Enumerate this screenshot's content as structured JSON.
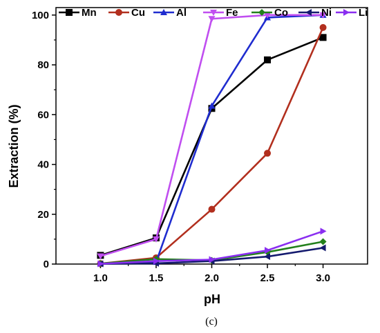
{
  "chart_data": {
    "type": "line",
    "xlabel": "pH",
    "ylabel": "Extraction (%)",
    "caption": "(c)",
    "x": [
      1.0,
      1.5,
      2.0,
      2.5,
      3.0
    ],
    "x_tick_labels": [
      "1.0",
      "1.5",
      "2.0",
      "2.5",
      "3.0"
    ],
    "xlim": [
      0.6,
      3.4
    ],
    "ylim": [
      0,
      103
    ],
    "y_ticks": [
      0,
      20,
      40,
      60,
      80,
      100
    ],
    "legend_position": "top",
    "grid": false,
    "series": [
      {
        "name": "Mn",
        "marker": "square",
        "color": "#000000",
        "values": [
          3.5,
          10.5,
          62.5,
          82,
          91
        ]
      },
      {
        "name": "Cu",
        "marker": "circle",
        "color": "#b22f1e",
        "values": [
          0.2,
          2.5,
          22,
          44.5,
          95
        ]
      },
      {
        "name": "Al",
        "marker": "triangle-up",
        "color": "#1f2ccf",
        "values": [
          0.2,
          0.8,
          63.5,
          99,
          100
        ]
      },
      {
        "name": "Fe",
        "marker": "triangle-down",
        "color": "#c04ef0",
        "values": [
          3.2,
          10,
          98.5,
          100,
          100
        ]
      },
      {
        "name": "Co",
        "marker": "diamond",
        "color": "#23801c",
        "values": [
          0.2,
          2,
          1.5,
          4.8,
          9
        ]
      },
      {
        "name": "Ni",
        "marker": "triangle-left",
        "color": "#141a6e",
        "values": [
          0.1,
          0.3,
          1.2,
          3,
          6.5
        ]
      },
      {
        "name": "Li",
        "marker": "triangle-right",
        "color": "#8a2ef0",
        "values": [
          0.1,
          1.2,
          1.8,
          5.5,
          13.2
        ]
      }
    ]
  }
}
